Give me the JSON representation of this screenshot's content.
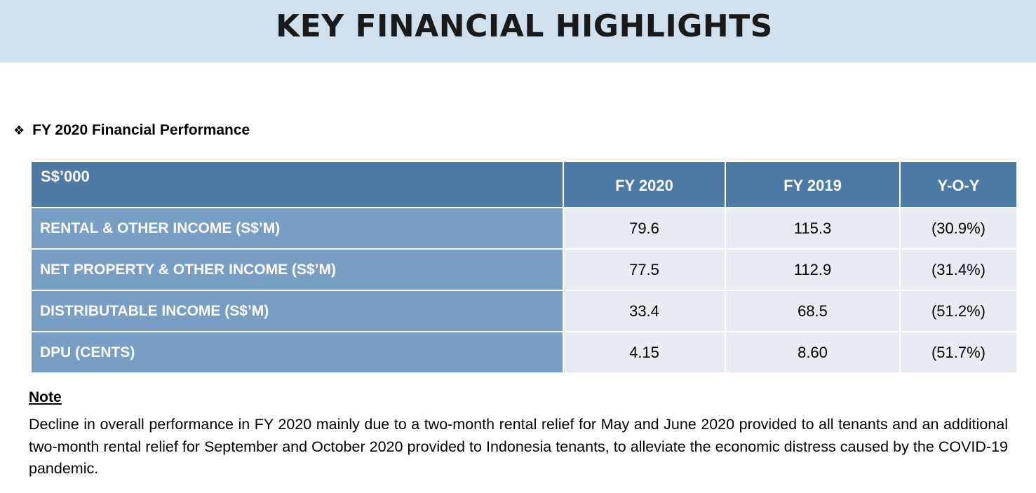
{
  "header": {
    "title": "KEY FINANCIAL HIGHLIGHTS"
  },
  "section": {
    "bullet_icon": "diamond-bullet-icon",
    "heading": "FY 2020 Financial Performance"
  },
  "table": {
    "columns": [
      "S$’000",
      "FY 2020",
      "FY 2019",
      "Y-O-Y"
    ],
    "rows": [
      {
        "label": "RENTAL & OTHER INCOME (S$’M)",
        "fy2020": "79.6",
        "fy2019": "115.3",
        "yoy": "(30.9%)"
      },
      {
        "label": "NET PROPERTY & OTHER INCOME (S$’M)",
        "fy2020": "77.5",
        "fy2019": "112.9",
        "yoy": "(31.4%)"
      },
      {
        "label": "DISTRIBUTABLE INCOME (S$’M)",
        "fy2020": "33.4",
        "fy2019": "68.5",
        "yoy": "(51.2%)"
      },
      {
        "label": "DPU (CENTS)",
        "fy2020": "4.15",
        "fy2019": "8.60",
        "yoy": "(51.7%)"
      }
    ]
  },
  "note": {
    "title": "Note",
    "text": "Decline in overall performance in FY 2020 mainly due to a two-month rental relief for May and June 2020 provided to all tenants and an additional two-month rental relief for September and October 2020 provided to Indonesia tenants, to alleviate the economic distress caused by the COVID-19 pandemic."
  },
  "colors": {
    "title_bar": "#d0e0ec",
    "header_row": "#4e7ba6",
    "label_cells": "#779ec4",
    "value_cells": "#e6ecf1"
  }
}
